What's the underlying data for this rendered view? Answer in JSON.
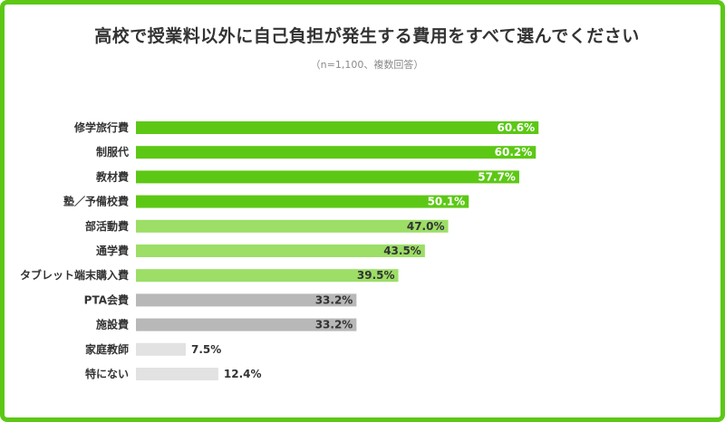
{
  "title": "高校で授業料以外に自己負担が発生する費用をすべて選んでください",
  "subtitle": "（n=1,100、複数回答）",
  "colors": {
    "frame": "#5cc815",
    "top_tier": "#5cc815",
    "mid_tier": "#9cde66",
    "low_tier": "#b8b8b8",
    "bottom_tier": "#e2e2e2"
  },
  "chart_data": {
    "type": "bar",
    "orientation": "horizontal",
    "title": "高校で授業料以外に自己負担が発生する費用をすべて選んでください",
    "subtitle": "（n=1,100、複数回答）",
    "xlim": [
      0,
      100
    ],
    "unit": "%",
    "grid": false,
    "legend": "none",
    "categories": [
      "修学旅行費",
      "制服代",
      "教材費",
      "塾／予備校費",
      "部活動費",
      "通学費",
      "タブレット端末購入費",
      "PTA会費",
      "施設費",
      "家庭教師",
      "特にない"
    ],
    "values": [
      60.6,
      60.2,
      57.7,
      50.1,
      47.0,
      43.5,
      39.5,
      33.2,
      33.2,
      7.5,
      12.4
    ],
    "value_labels": [
      "60.6%",
      "60.2%",
      "57.7%",
      "50.1%",
      "47.0%",
      "43.5%",
      "39.5%",
      "33.2%",
      "33.2%",
      "7.5%",
      "12.4%"
    ],
    "tiers": [
      "top_tier",
      "top_tier",
      "top_tier",
      "top_tier",
      "mid_tier",
      "mid_tier",
      "mid_tier",
      "low_tier",
      "low_tier",
      "bottom_tier",
      "bottom_tier"
    ]
  }
}
